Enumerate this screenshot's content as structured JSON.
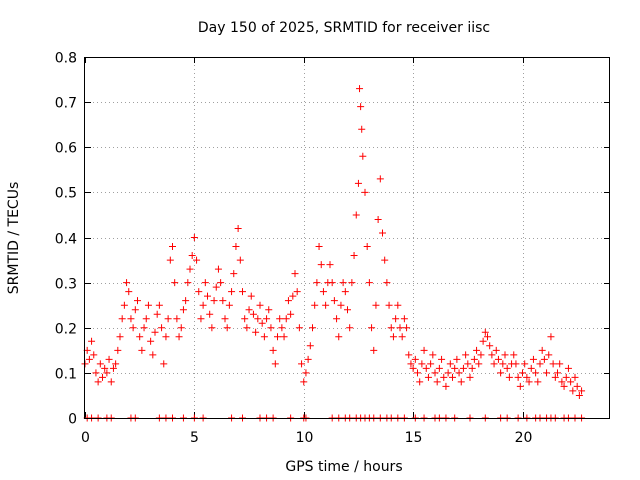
{
  "chart_data": {
    "type": "scatter",
    "title": "Day 150 of 2025, SRMTID for receiver iisc",
    "xlabel": "GPS time / hours",
    "ylabel": "SRMTID / TECUs",
    "xlim": [
      0,
      24
    ],
    "ylim": [
      0,
      0.8
    ],
    "xticks": [
      0,
      5,
      10,
      15,
      20
    ],
    "xtick_labels": [
      "0",
      "5",
      "10",
      "15",
      "20"
    ],
    "yticks": [
      0,
      0.1,
      0.2,
      0.3,
      0.4,
      0.5,
      0.6,
      0.7,
      0.8
    ],
    "ytick_labels": [
      "0",
      "0.1",
      "0.2",
      "0.3",
      "0.4",
      "0.5",
      "0.6",
      "0.7",
      "0.8"
    ],
    "grid": true,
    "marker": "plus",
    "marker_color": "#ff0000",
    "series": [
      {
        "name": "SRMTID",
        "points": [
          [
            0.0,
            0.12
          ],
          [
            0.1,
            0.15
          ],
          [
            0.2,
            0.13
          ],
          [
            0.3,
            0.17
          ],
          [
            0.4,
            0.14
          ],
          [
            0.5,
            0.1
          ],
          [
            0.6,
            0.08
          ],
          [
            0.7,
            0.12
          ],
          [
            0.8,
            0.09
          ],
          [
            0.9,
            0.11
          ],
          [
            1.0,
            0.1
          ],
          [
            1.1,
            0.13
          ],
          [
            1.2,
            0.08
          ],
          [
            1.3,
            0.11
          ],
          [
            1.4,
            0.12
          ],
          [
            1.5,
            0.15
          ],
          [
            1.6,
            0.18
          ],
          [
            1.7,
            0.22
          ],
          [
            1.8,
            0.25
          ],
          [
            1.9,
            0.3
          ],
          [
            2.0,
            0.28
          ],
          [
            2.1,
            0.22
          ],
          [
            2.2,
            0.2
          ],
          [
            2.3,
            0.24
          ],
          [
            2.4,
            0.26
          ],
          [
            2.5,
            0.18
          ],
          [
            2.6,
            0.15
          ],
          [
            2.7,
            0.2
          ],
          [
            2.8,
            0.22
          ],
          [
            2.9,
            0.25
          ],
          [
            3.0,
            0.17
          ],
          [
            3.1,
            0.14
          ],
          [
            3.2,
            0.19
          ],
          [
            3.3,
            0.23
          ],
          [
            3.4,
            0.25
          ],
          [
            3.5,
            0.2
          ],
          [
            3.6,
            0.12
          ],
          [
            3.7,
            0.18
          ],
          [
            3.8,
            0.22
          ],
          [
            3.9,
            0.35
          ],
          [
            4.0,
            0.38
          ],
          [
            4.1,
            0.3
          ],
          [
            4.2,
            0.22
          ],
          [
            4.3,
            0.18
          ],
          [
            4.4,
            0.2
          ],
          [
            4.5,
            0.24
          ],
          [
            4.6,
            0.26
          ],
          [
            4.7,
            0.3
          ],
          [
            4.8,
            0.33
          ],
          [
            4.9,
            0.36
          ],
          [
            5.0,
            0.4
          ],
          [
            5.1,
            0.35
          ],
          [
            5.2,
            0.28
          ],
          [
            5.3,
            0.22
          ],
          [
            5.4,
            0.25
          ],
          [
            5.5,
            0.3
          ],
          [
            5.6,
            0.27
          ],
          [
            5.7,
            0.23
          ],
          [
            5.8,
            0.2
          ],
          [
            5.9,
            0.26
          ],
          [
            6.0,
            0.29
          ],
          [
            6.1,
            0.33
          ],
          [
            6.2,
            0.3
          ],
          [
            6.3,
            0.26
          ],
          [
            6.4,
            0.22
          ],
          [
            6.5,
            0.2
          ],
          [
            6.6,
            0.25
          ],
          [
            6.7,
            0.28
          ],
          [
            6.8,
            0.32
          ],
          [
            6.9,
            0.38
          ],
          [
            7.0,
            0.42
          ],
          [
            7.1,
            0.35
          ],
          [
            7.2,
            0.28
          ],
          [
            7.3,
            0.22
          ],
          [
            7.4,
            0.2
          ],
          [
            7.5,
            0.24
          ],
          [
            7.6,
            0.27
          ],
          [
            7.7,
            0.23
          ],
          [
            7.8,
            0.19
          ],
          [
            7.9,
            0.22
          ],
          [
            8.0,
            0.25
          ],
          [
            8.1,
            0.21
          ],
          [
            8.2,
            0.18
          ],
          [
            8.3,
            0.22
          ],
          [
            8.4,
            0.24
          ],
          [
            8.5,
            0.2
          ],
          [
            8.6,
            0.15
          ],
          [
            8.7,
            0.12
          ],
          [
            8.8,
            0.18
          ],
          [
            8.9,
            0.22
          ],
          [
            9.0,
            0.2
          ],
          [
            9.1,
            0.18
          ],
          [
            9.2,
            0.22
          ],
          [
            9.3,
            0.26
          ],
          [
            9.4,
            0.23
          ],
          [
            9.5,
            0.27
          ],
          [
            9.6,
            0.32
          ],
          [
            9.7,
            0.28
          ],
          [
            9.8,
            0.2
          ],
          [
            9.9,
            0.12
          ],
          [
            10.0,
            0.08
          ],
          [
            10.1,
            0.1
          ],
          [
            10.2,
            0.13
          ],
          [
            10.3,
            0.16
          ],
          [
            10.4,
            0.2
          ],
          [
            10.5,
            0.25
          ],
          [
            10.6,
            0.3
          ],
          [
            10.7,
            0.38
          ],
          [
            10.8,
            0.34
          ],
          [
            10.9,
            0.28
          ],
          [
            11.0,
            0.25
          ],
          [
            11.1,
            0.3
          ],
          [
            11.2,
            0.34
          ],
          [
            11.3,
            0.3
          ],
          [
            11.4,
            0.26
          ],
          [
            11.5,
            0.22
          ],
          [
            11.6,
            0.18
          ],
          [
            11.7,
            0.25
          ],
          [
            11.8,
            0.3
          ],
          [
            11.9,
            0.28
          ],
          [
            12.0,
            0.24
          ],
          [
            12.1,
            0.2
          ],
          [
            12.2,
            0.3
          ],
          [
            12.3,
            0.36
          ],
          [
            12.4,
            0.45
          ],
          [
            12.5,
            0.52
          ],
          [
            12.55,
            0.73
          ],
          [
            12.6,
            0.69
          ],
          [
            12.65,
            0.64
          ],
          [
            12.7,
            0.58
          ],
          [
            12.8,
            0.5
          ],
          [
            12.9,
            0.38
          ],
          [
            13.0,
            0.3
          ],
          [
            13.1,
            0.2
          ],
          [
            13.2,
            0.15
          ],
          [
            13.3,
            0.25
          ],
          [
            13.4,
            0.44
          ],
          [
            13.5,
            0.53
          ],
          [
            13.6,
            0.41
          ],
          [
            13.7,
            0.35
          ],
          [
            13.8,
            0.3
          ],
          [
            13.9,
            0.25
          ],
          [
            14.0,
            0.2
          ],
          [
            14.1,
            0.18
          ],
          [
            14.2,
            0.22
          ],
          [
            14.3,
            0.25
          ],
          [
            14.4,
            0.2
          ],
          [
            14.5,
            0.18
          ],
          [
            14.6,
            0.22
          ],
          [
            14.7,
            0.2
          ],
          [
            14.8,
            0.14
          ],
          [
            14.9,
            0.12
          ],
          [
            15.0,
            0.11
          ],
          [
            15.1,
            0.13
          ],
          [
            15.2,
            0.1
          ],
          [
            15.3,
            0.08
          ],
          [
            15.4,
            0.12
          ],
          [
            15.5,
            0.15
          ],
          [
            15.6,
            0.11
          ],
          [
            15.7,
            0.09
          ],
          [
            15.8,
            0.12
          ],
          [
            15.9,
            0.14
          ],
          [
            16.0,
            0.1
          ],
          [
            16.1,
            0.08
          ],
          [
            16.2,
            0.11
          ],
          [
            16.3,
            0.13
          ],
          [
            16.4,
            0.09
          ],
          [
            16.5,
            0.07
          ],
          [
            16.6,
            0.1
          ],
          [
            16.7,
            0.12
          ],
          [
            16.8,
            0.09
          ],
          [
            16.9,
            0.11
          ],
          [
            17.0,
            0.13
          ],
          [
            17.1,
            0.1
          ],
          [
            17.2,
            0.08
          ],
          [
            17.3,
            0.11
          ],
          [
            17.4,
            0.14
          ],
          [
            17.5,
            0.12
          ],
          [
            17.6,
            0.09
          ],
          [
            17.7,
            0.11
          ],
          [
            17.8,
            0.13
          ],
          [
            17.9,
            0.15
          ],
          [
            18.0,
            0.12
          ],
          [
            18.1,
            0.14
          ],
          [
            18.2,
            0.17
          ],
          [
            18.3,
            0.19
          ],
          [
            18.4,
            0.18
          ],
          [
            18.5,
            0.16
          ],
          [
            18.6,
            0.14
          ],
          [
            18.7,
            0.12
          ],
          [
            18.8,
            0.15
          ],
          [
            18.9,
            0.13
          ],
          [
            19.0,
            0.1
          ],
          [
            19.1,
            0.12
          ],
          [
            19.2,
            0.14
          ],
          [
            19.3,
            0.11
          ],
          [
            19.4,
            0.09
          ],
          [
            19.5,
            0.12
          ],
          [
            19.6,
            0.14
          ],
          [
            19.7,
            0.12
          ],
          [
            19.8,
            0.09
          ],
          [
            19.9,
            0.07
          ],
          [
            20.0,
            0.1
          ],
          [
            20.1,
            0.12
          ],
          [
            20.2,
            0.09
          ],
          [
            20.3,
            0.08
          ],
          [
            20.4,
            0.11
          ],
          [
            20.5,
            0.13
          ],
          [
            20.6,
            0.1
          ],
          [
            20.7,
            0.08
          ],
          [
            20.8,
            0.12
          ],
          [
            20.9,
            0.15
          ],
          [
            21.0,
            0.13
          ],
          [
            21.1,
            0.1
          ],
          [
            21.2,
            0.14
          ],
          [
            21.3,
            0.18
          ],
          [
            21.4,
            0.12
          ],
          [
            21.5,
            0.09
          ],
          [
            21.6,
            0.1
          ],
          [
            21.7,
            0.12
          ],
          [
            21.8,
            0.08
          ],
          [
            21.9,
            0.07
          ],
          [
            22.0,
            0.09
          ],
          [
            22.1,
            0.11
          ],
          [
            22.2,
            0.08
          ],
          [
            22.3,
            0.06
          ],
          [
            22.4,
            0.09
          ],
          [
            22.5,
            0.07
          ],
          [
            22.6,
            0.05
          ],
          [
            22.7,
            0.06
          ]
        ]
      }
    ],
    "baseline_x": [
      0.1,
      0.3,
      0.6,
      1.0,
      1.2,
      2.1,
      2.3,
      3.4,
      3.7,
      4.0,
      4.5,
      5.0,
      5.4,
      6.7,
      7.2,
      8.0,
      8.3,
      8.6,
      9.4,
      10.0,
      10.1,
      11.3,
      11.6,
      11.9,
      12.1,
      12.4,
      12.6,
      12.8,
      13.0,
      13.2,
      13.5,
      13.8,
      14.0,
      14.3,
      14.6,
      15.1,
      15.5,
      16.0,
      16.2,
      16.5,
      16.9,
      17.6,
      18.3,
      19.0,
      19.3,
      19.8,
      20.2,
      20.6,
      20.8,
      21.1,
      21.3,
      21.5,
      21.9,
      22.1,
      22.4,
      22.7
    ]
  }
}
